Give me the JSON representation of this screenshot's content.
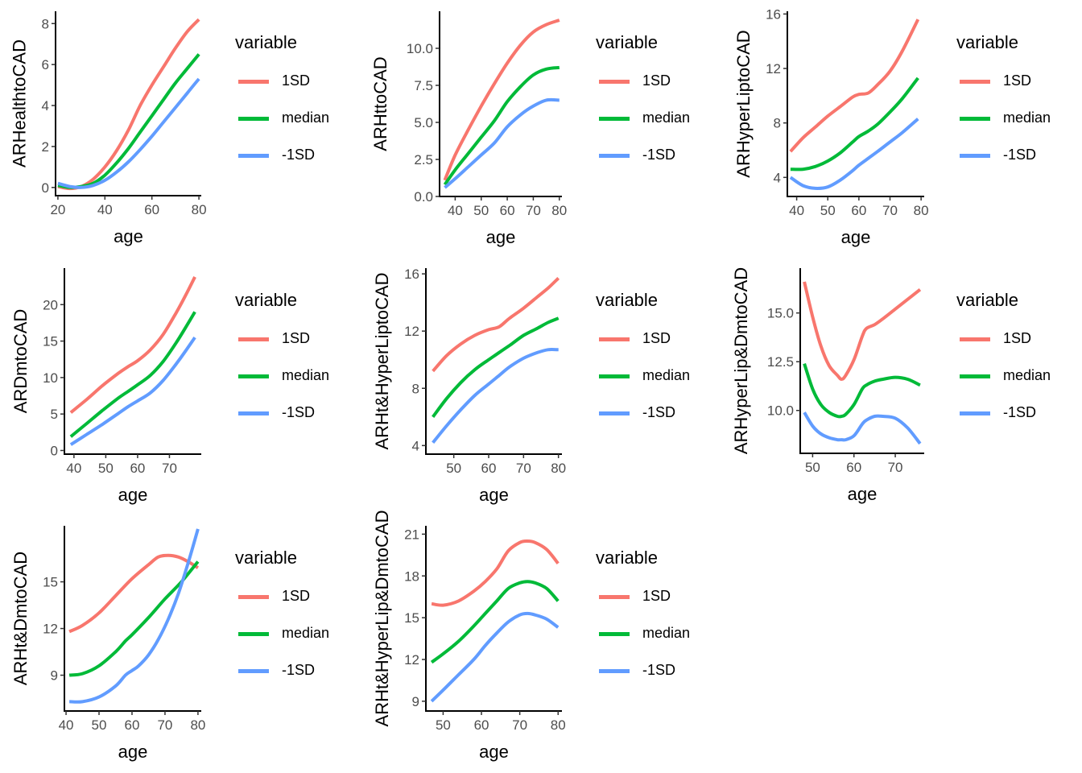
{
  "legend": {
    "title": "variable",
    "entries": [
      {
        "label": "1SD",
        "color": "#F8766D"
      },
      {
        "label": "median",
        "color": "#00BA38"
      },
      {
        "label": "-1SD",
        "color": "#619CFF"
      }
    ]
  },
  "chart_data": [
    {
      "type": "line",
      "title": "",
      "xlabel": "age",
      "ylabel": "ARHealthtoCAD",
      "xlim": [
        19,
        81
      ],
      "ylim": [
        -0.4,
        8.6
      ],
      "xticks": [
        20,
        40,
        60,
        80
      ],
      "xtick_labels": [
        "20",
        "40",
        "60",
        "80"
      ],
      "yticks": [
        0,
        2,
        4,
        6,
        8
      ],
      "ytick_labels": [
        "0",
        "2",
        "4",
        "6",
        "8"
      ],
      "grid": false,
      "legend_position": "right",
      "series": [
        {
          "name": "1SD",
          "x": [
            20,
            25,
            30,
            35,
            40,
            45,
            50,
            55,
            60,
            65,
            70,
            75,
            80
          ],
          "y": [
            0.05,
            -0.05,
            0.05,
            0.4,
            1.0,
            1.8,
            2.8,
            4.0,
            5.0,
            5.9,
            6.8,
            7.6,
            8.2
          ]
        },
        {
          "name": "median",
          "x": [
            20,
            25,
            30,
            35,
            40,
            45,
            50,
            55,
            60,
            65,
            70,
            75,
            80
          ],
          "y": [
            0.1,
            0.0,
            0.05,
            0.2,
            0.6,
            1.2,
            1.9,
            2.7,
            3.5,
            4.3,
            5.1,
            5.8,
            6.5
          ]
        },
        {
          "name": "-1SD",
          "x": [
            20,
            25,
            30,
            35,
            40,
            45,
            50,
            55,
            60,
            65,
            70,
            75,
            80
          ],
          "y": [
            0.2,
            0.05,
            0.0,
            0.1,
            0.35,
            0.75,
            1.25,
            1.85,
            2.5,
            3.2,
            3.9,
            4.6,
            5.3
          ]
        }
      ]
    },
    {
      "type": "line",
      "title": "",
      "xlabel": "age",
      "ylabel": "ARHttoCAD",
      "xlim": [
        34,
        81
      ],
      "ylim": [
        0,
        12.5
      ],
      "xticks": [
        40,
        50,
        60,
        70,
        80
      ],
      "xtick_labels": [
        "40",
        "50",
        "60",
        "70",
        "80"
      ],
      "yticks": [
        0,
        2.5,
        5,
        7.5,
        10
      ],
      "ytick_labels": [
        "0.0",
        "2.5",
        "5.0",
        "7.5",
        "10.0"
      ],
      "grid": false,
      "legend_position": "right",
      "series": [
        {
          "name": "1SD",
          "x": [
            36,
            40,
            45,
            50,
            55,
            60,
            65,
            70,
            75,
            80
          ],
          "y": [
            1.1,
            2.8,
            4.5,
            6.1,
            7.6,
            9.0,
            10.2,
            11.1,
            11.6,
            11.9
          ]
        },
        {
          "name": "median",
          "x": [
            36,
            40,
            45,
            50,
            55,
            60,
            65,
            70,
            75,
            80
          ],
          "y": [
            0.8,
            1.8,
            2.9,
            4.0,
            5.1,
            6.4,
            7.4,
            8.2,
            8.6,
            8.7
          ]
        },
        {
          "name": "-1SD",
          "x": [
            36,
            40,
            45,
            50,
            55,
            60,
            65,
            70,
            75,
            80
          ],
          "y": [
            0.6,
            1.2,
            2.0,
            2.8,
            3.6,
            4.7,
            5.5,
            6.1,
            6.5,
            6.5
          ]
        }
      ]
    },
    {
      "type": "line",
      "title": "",
      "xlabel": "age",
      "ylabel": "ARHyperLiptoCAD",
      "xlim": [
        37,
        81
      ],
      "ylim": [
        2.6,
        16.2
      ],
      "xticks": [
        40,
        50,
        60,
        70,
        80
      ],
      "xtick_labels": [
        "40",
        "50",
        "60",
        "70",
        "80"
      ],
      "yticks": [
        4,
        8,
        12,
        16
      ],
      "ytick_labels": [
        "4",
        "8",
        "12",
        "16"
      ],
      "grid": false,
      "legend_position": "right",
      "series": [
        {
          "name": "1SD",
          "x": [
            38,
            42,
            46,
            50,
            54,
            58,
            60,
            63,
            66,
            70,
            74,
            79
          ],
          "y": [
            5.9,
            6.9,
            7.7,
            8.5,
            9.2,
            9.9,
            10.1,
            10.2,
            10.8,
            11.8,
            13.3,
            15.6
          ]
        },
        {
          "name": "median",
          "x": [
            38,
            42,
            46,
            50,
            54,
            58,
            60,
            63,
            66,
            70,
            74,
            79
          ],
          "y": [
            4.6,
            4.6,
            4.8,
            5.2,
            5.8,
            6.6,
            7.0,
            7.4,
            7.9,
            8.8,
            9.8,
            11.3
          ]
        },
        {
          "name": "-1SD",
          "x": [
            38,
            42,
            46,
            50,
            54,
            58,
            60,
            63,
            66,
            70,
            74,
            79
          ],
          "y": [
            4.0,
            3.4,
            3.2,
            3.3,
            3.8,
            4.5,
            4.9,
            5.4,
            5.9,
            6.6,
            7.3,
            8.3
          ]
        }
      ]
    },
    {
      "type": "line",
      "title": "",
      "xlabel": "age",
      "ylabel": "ARDmtoCAD",
      "xlim": [
        37,
        80
      ],
      "ylim": [
        -0.5,
        25
      ],
      "xticks": [
        40,
        50,
        60,
        70
      ],
      "xtick_labels": [
        "40",
        "50",
        "60",
        "70"
      ],
      "yticks": [
        0,
        5,
        10,
        15,
        20
      ],
      "ytick_labels": [
        "0",
        "5",
        "10",
        "15",
        "20"
      ],
      "grid": false,
      "legend_position": "right",
      "series": [
        {
          "name": "1SD",
          "x": [
            39,
            44,
            49,
            54,
            57,
            60,
            64,
            68,
            72,
            75,
            78
          ],
          "y": [
            5.2,
            7.0,
            8.9,
            10.6,
            11.5,
            12.3,
            13.8,
            15.9,
            18.8,
            21.2,
            23.8
          ]
        },
        {
          "name": "median",
          "x": [
            39,
            44,
            49,
            54,
            57,
            60,
            64,
            68,
            72,
            75,
            78
          ],
          "y": [
            1.9,
            3.7,
            5.5,
            7.2,
            8.1,
            9.0,
            10.3,
            12.2,
            14.7,
            16.8,
            19.0
          ]
        },
        {
          "name": "-1SD",
          "x": [
            39,
            44,
            49,
            54,
            57,
            60,
            64,
            68,
            72,
            75,
            78
          ],
          "y": [
            0.8,
            2.2,
            3.6,
            5.1,
            6.0,
            6.8,
            7.9,
            9.6,
            11.8,
            13.6,
            15.5
          ]
        }
      ]
    },
    {
      "type": "line",
      "title": "",
      "xlabel": "age",
      "ylabel": "ARHt&HyperLiptoCAD",
      "xlim": [
        42,
        81
      ],
      "ylim": [
        3.4,
        16.4
      ],
      "xticks": [
        50,
        60,
        70,
        80
      ],
      "xtick_labels": [
        "50",
        "60",
        "70",
        "80"
      ],
      "yticks": [
        4,
        8,
        12,
        16
      ],
      "ytick_labels": [
        "4",
        "8",
        "12",
        "16"
      ],
      "grid": false,
      "legend_position": "right",
      "series": [
        {
          "name": "1SD",
          "x": [
            44,
            48,
            52,
            56,
            60,
            63,
            66,
            70,
            74,
            77,
            80
          ],
          "y": [
            9.2,
            10.3,
            11.1,
            11.7,
            12.1,
            12.3,
            12.9,
            13.6,
            14.4,
            15.0,
            15.7
          ]
        },
        {
          "name": "median",
          "x": [
            44,
            48,
            52,
            56,
            60,
            63,
            66,
            70,
            74,
            77,
            80
          ],
          "y": [
            6.0,
            7.3,
            8.4,
            9.3,
            10.0,
            10.5,
            11.0,
            11.7,
            12.2,
            12.6,
            12.9
          ]
        },
        {
          "name": "-1SD",
          "x": [
            44,
            48,
            52,
            56,
            60,
            63,
            66,
            70,
            74,
            77,
            80
          ],
          "y": [
            4.2,
            5.4,
            6.5,
            7.5,
            8.3,
            8.9,
            9.5,
            10.1,
            10.5,
            10.7,
            10.7
          ]
        }
      ]
    },
    {
      "type": "line",
      "title": "",
      "xlabel": "age",
      "ylabel": "ARHyperLip&DmtoCAD",
      "xlim": [
        47,
        77
      ],
      "ylim": [
        7.8,
        17.3
      ],
      "xticks": [
        50,
        60,
        70
      ],
      "xtick_labels": [
        "50",
        "60",
        "70"
      ],
      "yticks": [
        10,
        12.5,
        15
      ],
      "ytick_labels": [
        "10.0",
        "12.5",
        "15.0"
      ],
      "grid": false,
      "legend_position": "right",
      "series": [
        {
          "name": "1SD",
          "x": [
            48,
            50,
            52,
            54,
            56,
            57,
            58,
            60,
            62,
            63,
            65,
            67,
            70,
            73,
            76
          ],
          "y": [
            16.6,
            14.8,
            13.3,
            12.3,
            11.8,
            11.6,
            11.8,
            12.6,
            13.8,
            14.2,
            14.4,
            14.7,
            15.2,
            15.7,
            16.2
          ]
        },
        {
          "name": "median",
          "x": [
            48,
            50,
            52,
            54,
            56,
            57,
            58,
            60,
            62,
            63,
            65,
            67,
            70,
            73,
            76
          ],
          "y": [
            12.4,
            11.1,
            10.3,
            9.9,
            9.7,
            9.7,
            9.8,
            10.3,
            11.1,
            11.3,
            11.5,
            11.6,
            11.7,
            11.6,
            11.3
          ]
        },
        {
          "name": "-1SD",
          "x": [
            48,
            50,
            52,
            54,
            56,
            57,
            58,
            60,
            62,
            63,
            65,
            67,
            70,
            73,
            76
          ],
          "y": [
            9.9,
            9.2,
            8.8,
            8.6,
            8.5,
            8.5,
            8.5,
            8.7,
            9.3,
            9.5,
            9.7,
            9.7,
            9.6,
            9.1,
            8.3
          ]
        }
      ]
    },
    {
      "type": "line",
      "title": "",
      "xlabel": "age",
      "ylabel": "ARHt&DmtoCAD",
      "xlim": [
        39.5,
        81
      ],
      "ylim": [
        6.7,
        18.6
      ],
      "xticks": [
        40,
        50,
        60,
        70,
        80
      ],
      "xtick_labels": [
        "40",
        "50",
        "60",
        "70",
        "80"
      ],
      "yticks": [
        9,
        12,
        15
      ],
      "ytick_labels": [
        "9",
        "12",
        "15"
      ],
      "grid": false,
      "legend_position": "right",
      "series": [
        {
          "name": "1SD",
          "x": [
            41,
            45,
            50,
            55,
            60,
            65,
            68,
            71,
            74,
            77,
            80
          ],
          "y": [
            11.8,
            12.2,
            13.0,
            14.1,
            15.2,
            16.1,
            16.6,
            16.7,
            16.6,
            16.3,
            15.9
          ]
        },
        {
          "name": "median",
          "x": [
            41,
            45,
            50,
            55,
            58,
            60,
            65,
            70,
            75,
            80
          ],
          "y": [
            9.0,
            9.1,
            9.6,
            10.5,
            11.2,
            11.6,
            12.7,
            13.9,
            15.0,
            16.3
          ]
        },
        {
          "name": "-1SD",
          "x": [
            41,
            45,
            50,
            55,
            58,
            60,
            62,
            65,
            68,
            71,
            74,
            77,
            80
          ],
          "y": [
            7.3,
            7.3,
            7.6,
            8.3,
            9.0,
            9.3,
            9.6,
            10.3,
            11.3,
            12.6,
            14.2,
            16.2,
            18.4
          ]
        }
      ]
    },
    {
      "type": "line",
      "title": "",
      "xlabel": "age",
      "ylabel": "ARHt&HyperLip&DmtoCAD",
      "xlim": [
        45.5,
        81
      ],
      "ylim": [
        8.3,
        21.6
      ],
      "xticks": [
        50,
        60,
        70,
        80
      ],
      "xtick_labels": [
        "50",
        "60",
        "70",
        "80"
      ],
      "yticks": [
        9,
        12,
        15,
        18,
        21
      ],
      "ytick_labels": [
        "9",
        "12",
        "15",
        "18",
        "21"
      ],
      "grid": false,
      "legend_position": "right",
      "series": [
        {
          "name": "1SD",
          "x": [
            47,
            50,
            54,
            58,
            61,
            64,
            67,
            70,
            72,
            74,
            77,
            80
          ],
          "y": [
            16.0,
            15.9,
            16.2,
            16.9,
            17.6,
            18.5,
            19.8,
            20.4,
            20.5,
            20.4,
            19.9,
            18.9
          ]
        },
        {
          "name": "median",
          "x": [
            47,
            50,
            54,
            58,
            61,
            64,
            67,
            70,
            72,
            74,
            77,
            80
          ],
          "y": [
            11.8,
            12.4,
            13.3,
            14.4,
            15.3,
            16.2,
            17.1,
            17.5,
            17.6,
            17.5,
            17.1,
            16.2
          ]
        },
        {
          "name": "-1SD",
          "x": [
            47,
            50,
            54,
            58,
            61,
            64,
            67,
            70,
            72,
            74,
            77,
            80
          ],
          "y": [
            9.0,
            9.8,
            10.9,
            12.0,
            13.0,
            13.9,
            14.7,
            15.2,
            15.3,
            15.2,
            14.9,
            14.3
          ]
        }
      ]
    }
  ]
}
